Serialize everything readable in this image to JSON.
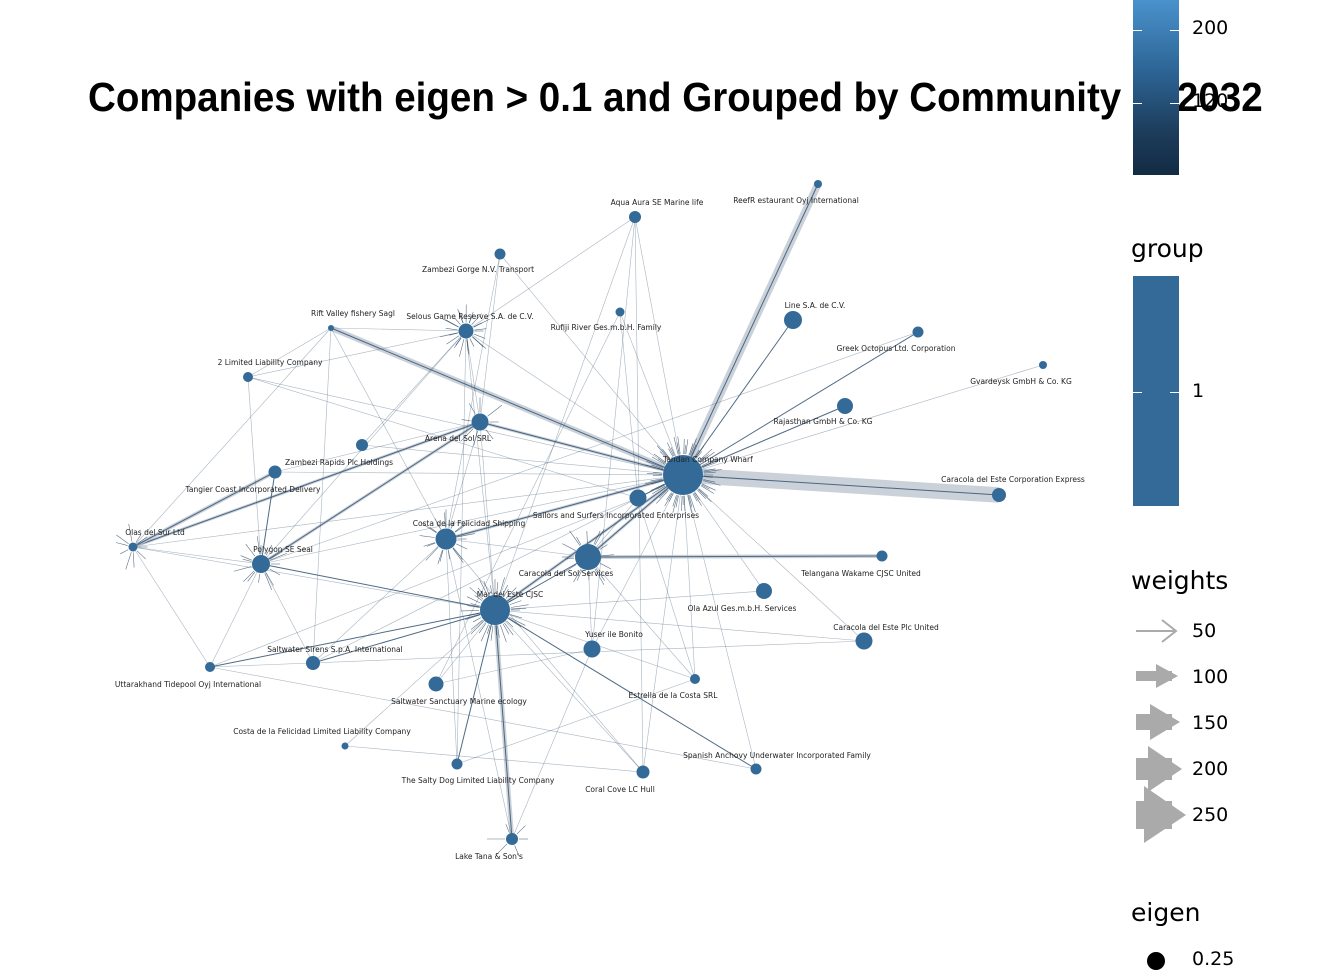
{
  "title": "Companies with eigen > 0.1 and Grouped by Community in 2032",
  "legend": {
    "colorbar": {
      "ticks": [
        "200",
        "120"
      ]
    },
    "group": {
      "title": "group",
      "ticks": [
        "1"
      ]
    },
    "weights": {
      "title": "weights",
      "ticks": [
        "50",
        "100",
        "150",
        "200",
        "250"
      ]
    },
    "eigen": {
      "title": "eigen",
      "ticks": [
        "0.25"
      ]
    }
  },
  "colors": {
    "node": "#336a98",
    "edge": "#3d5a78",
    "edge_light": "#b8c2cc"
  },
  "nodes": [
    {
      "id": "hub",
      "label": "Tandan Company Wharf",
      "size": "large"
    },
    {
      "id": "caracola_express",
      "label": "Caracola del Este Corporation Express"
    },
    {
      "id": "aqua",
      "label": "Aqua Aura SE Marine life"
    },
    {
      "id": "reef",
      "label": "ReefR estaurant Oyj International"
    },
    {
      "id": "zgorge",
      "label": "Zambezi Gorge  N.V. Transport"
    },
    {
      "id": "selous",
      "label": "Selous Game Reserve S.A. de C.V."
    },
    {
      "id": "rufiji",
      "label": "Rufiji River  Ges.m.b.H. Family"
    },
    {
      "id": "rift",
      "label": "Rift Valley fishery Sagl"
    },
    {
      "id": "line",
      "label": "Line S.A. de C.V."
    },
    {
      "id": "greek",
      "label": "Greek Octopus Ltd. Corporation"
    },
    {
      "id": "gvard",
      "label": "Gvardeysk GmbH & Co. KG"
    },
    {
      "id": "two",
      "label": "2 Limited Liability Company"
    },
    {
      "id": "rajasthan",
      "label": "Rajasthan GmbH & Co. KG"
    },
    {
      "id": "arena",
      "label": "Arena del Sol SRL"
    },
    {
      "id": "zrapids",
      "label": "Zambezi Rapids  Plc Holdings"
    },
    {
      "id": "tangier",
      "label": "Tangier Coast  Incorporated Delivery"
    },
    {
      "id": "sailors",
      "label": "Sailors and Surfers Incorporated Enterprises"
    },
    {
      "id": "olas",
      "label": "Olas del Sur Ltd"
    },
    {
      "id": "felicidad_ship",
      "label": "Costa de la Felicidad Shipping"
    },
    {
      "id": "polygon",
      "label": "Polygon SE Seal"
    },
    {
      "id": "caracola_serv",
      "label": "Caracola del Sol Services"
    },
    {
      "id": "telangana",
      "label": "Telangana  Wakame CJSC United"
    },
    {
      "id": "mar",
      "label": "Mar del Este CJSC"
    },
    {
      "id": "olaazul",
      "label": "Ola Azul Ges.m.b.H. Services"
    },
    {
      "id": "caracola_plc",
      "label": "Caracola del Este Plc United"
    },
    {
      "id": "yuser",
      "label": "Yuser ile  Bonito"
    },
    {
      "id": "saltsirens",
      "label": "Saltwater Sirens S.p.A. International"
    },
    {
      "id": "uttar",
      "label": "Uttarakhand   Tidepool Oyj International"
    },
    {
      "id": "estrella",
      "label": "Estrella de la Costa SRL"
    },
    {
      "id": "saltsanct",
      "label": "Saltwater Sanctuary Marine ecology"
    },
    {
      "id": "felicidad_llc",
      "label": "Costa de la Felicidad Limited Liability Company"
    },
    {
      "id": "spanish",
      "label": "Spanish Anchovy Underwater Incorporated Family"
    },
    {
      "id": "saltydog",
      "label": "The Salty Dog Limited Liability Company"
    },
    {
      "id": "coral",
      "label": "Coral Cove LC Hull"
    },
    {
      "id": "tana",
      "label": "Lake Tana  & Son's"
    }
  ],
  "edges": [
    [
      "hub",
      "caracola_express",
      250
    ],
    [
      "hub",
      "reef",
      120
    ],
    [
      "hub",
      "aqua",
      10
    ],
    [
      "hub",
      "line",
      20
    ],
    [
      "hub",
      "greek",
      20
    ],
    [
      "hub",
      "gvard",
      10
    ],
    [
      "hub",
      "rajasthan",
      20
    ],
    [
      "hub",
      "rift",
      90
    ],
    [
      "hub",
      "selous",
      10
    ],
    [
      "hub",
      "rufiji",
      10
    ],
    [
      "hub",
      "arena",
      30
    ],
    [
      "hub",
      "zrapids",
      10
    ],
    [
      "hub",
      "tangier",
      10
    ],
    [
      "hub",
      "sailors",
      20
    ],
    [
      "hub",
      "felicidad_ship",
      30
    ],
    [
      "hub",
      "polygon",
      10
    ],
    [
      "hub",
      "caracola_serv",
      30
    ],
    [
      "hub",
      "mar",
      40
    ],
    [
      "hub",
      "olaazul",
      10
    ],
    [
      "hub",
      "caracola_plc",
      10
    ],
    [
      "hub",
      "yuser",
      10
    ],
    [
      "hub",
      "estrella",
      10
    ],
    [
      "hub",
      "coral",
      10
    ],
    [
      "hub",
      "spanish",
      10
    ],
    [
      "hub",
      "two",
      10
    ],
    [
      "hub",
      "zgorge",
      10
    ],
    [
      "hub",
      "olas",
      10
    ],
    [
      "caracola_serv",
      "telangana",
      60
    ],
    [
      "caracola_serv",
      "mar",
      20
    ],
    [
      "caracola_serv",
      "sailors",
      10
    ],
    [
      "caracola_serv",
      "felicidad_ship",
      10
    ],
    [
      "caracola_serv",
      "yuser",
      10
    ],
    [
      "caracola_serv",
      "estrella",
      10
    ],
    [
      "mar",
      "tana",
      70
    ],
    [
      "mar",
      "saltydog",
      20
    ],
    [
      "mar",
      "saltsirens",
      20
    ],
    [
      "mar",
      "uttar",
      20
    ],
    [
      "mar",
      "polygon",
      20
    ],
    [
      "mar",
      "olas",
      10
    ],
    [
      "mar",
      "saltsanct",
      10
    ],
    [
      "mar",
      "felicidad_llc",
      10
    ],
    [
      "mar",
      "spanish",
      20
    ],
    [
      "mar",
      "selous",
      10
    ],
    [
      "mar",
      "aqua",
      10
    ],
    [
      "mar",
      "arena",
      10
    ],
    [
      "mar",
      "caracola_plc",
      10
    ],
    [
      "mar",
      "olaazul",
      10
    ],
    [
      "mar",
      "coral",
      10
    ],
    [
      "mar",
      "estrella",
      10
    ],
    [
      "arena",
      "olas",
      40
    ],
    [
      "arena",
      "tangier",
      10
    ],
    [
      "arena",
      "felicidad_ship",
      10
    ],
    [
      "arena",
      "selous",
      10
    ],
    [
      "polygon",
      "tangier",
      20
    ],
    [
      "polygon",
      "olas",
      10
    ],
    [
      "polygon",
      "arena",
      40
    ],
    [
      "polygon",
      "uttar",
      10
    ],
    [
      "polygon",
      "saltsirens",
      10
    ],
    [
      "olas",
      "uttar",
      10
    ],
    [
      "olas",
      "tangier",
      60
    ],
    [
      "felicidad_ship",
      "saltydog",
      10
    ],
    [
      "felicidad_ship",
      "saltsirens",
      10
    ],
    [
      "felicidad_ship",
      "zgorge",
      10
    ],
    [
      "felicidad_ship",
      "rift",
      10
    ],
    [
      "felicidad_ship",
      "tana",
      10
    ],
    [
      "felicidad_ship",
      "coral",
      10
    ],
    [
      "selous",
      "zrapids",
      10
    ],
    [
      "selous",
      "two",
      10
    ],
    [
      "selous",
      "rift",
      10
    ],
    [
      "selous",
      "aqua",
      10
    ],
    [
      "selous",
      "saltydog",
      10
    ],
    [
      "selous",
      "polygon",
      10
    ],
    [
      "zgorge",
      "arena",
      10
    ],
    [
      "aqua",
      "coral",
      10
    ],
    [
      "aqua",
      "yuser",
      10
    ],
    [
      "rufiji",
      "saltsanct",
      10
    ],
    [
      "rufiji",
      "sailors",
      10
    ],
    [
      "two",
      "rift",
      10
    ],
    [
      "two",
      "polygon",
      10
    ],
    [
      "two",
      "sailors",
      10
    ],
    [
      "rift",
      "saltsirens",
      10
    ],
    [
      "rift",
      "olas",
      10
    ],
    [
      "sailors",
      "estrella",
      10
    ],
    [
      "sailors",
      "saltsirens",
      10
    ],
    [
      "sailors",
      "uttar",
      10
    ],
    [
      "yuser",
      "tana",
      10
    ],
    [
      "yuser",
      "saltsanct",
      10
    ],
    [
      "estrella",
      "saltydog",
      10
    ],
    [
      "spanish",
      "uttar",
      10
    ],
    [
      "coral",
      "felicidad_llc",
      10
    ],
    [
      "caracola_plc",
      "uttar",
      10
    ],
    [
      "greek",
      "polygon",
      10
    ]
  ]
}
